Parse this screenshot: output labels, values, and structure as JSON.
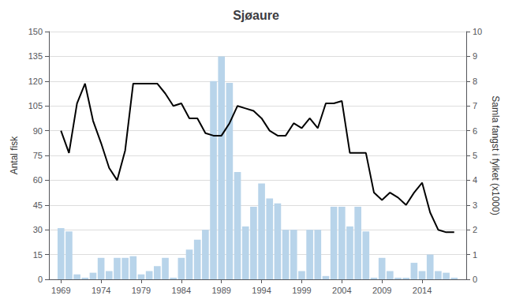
{
  "chart_data": {
    "type": "bar",
    "title": "Sjøaure",
    "ylabel": "Antal fisk",
    "y2label": "Samla fangst i fylket (x1000)",
    "x": [
      1969,
      1970,
      1971,
      1972,
      1973,
      1974,
      1975,
      1976,
      1977,
      1978,
      1979,
      1980,
      1981,
      1982,
      1983,
      1984,
      1985,
      1986,
      1987,
      1988,
      1989,
      1990,
      1991,
      1992,
      1993,
      1994,
      1995,
      1996,
      1997,
      1998,
      1999,
      2000,
      2001,
      2002,
      2003,
      2004,
      2005,
      2006,
      2007,
      2008,
      2009,
      2010,
      2011,
      2012,
      2013,
      2014,
      2015,
      2016,
      2017,
      2018
    ],
    "xlim": [
      1967.5,
      2019.5
    ],
    "xticks": [
      1969,
      1974,
      1979,
      1984,
      1989,
      1994,
      1999,
      2004,
      2009,
      2014
    ],
    "ylim": [
      0,
      150
    ],
    "yticks": [
      0,
      15,
      30,
      45,
      60,
      75,
      90,
      105,
      120,
      135,
      150
    ],
    "y2lim": [
      0,
      10
    ],
    "y2ticks": [
      0,
      1,
      2,
      3,
      4,
      5,
      6,
      7,
      8,
      9,
      10
    ],
    "grid": true,
    "series": [
      {
        "type": "bar",
        "color": "#b8d4ea",
        "values": [
          31,
          29,
          3,
          1,
          4,
          13,
          5,
          13,
          13,
          14,
          3,
          5,
          8,
          13,
          1,
          13,
          18,
          24,
          30,
          120,
          135,
          119,
          65,
          32,
          44,
          58,
          49,
          46,
          30,
          30,
          5,
          30,
          30,
          2,
          44,
          44,
          32,
          44,
          29,
          1,
          13,
          5,
          1,
          1,
          10,
          5,
          15,
          5,
          4,
          1
        ]
      },
      {
        "type": "line",
        "axis": "y2",
        "color": "#000000",
        "values": [
          6.0,
          5.1,
          7.1,
          7.9,
          6.4,
          5.5,
          4.5,
          4.0,
          5.2,
          7.9,
          7.9,
          7.9,
          7.9,
          7.5,
          7.0,
          7.1,
          6.5,
          6.5,
          5.9,
          5.8,
          5.8,
          6.3,
          7.0,
          6.9,
          6.8,
          6.5,
          6.0,
          5.8,
          5.8,
          6.3,
          6.1,
          6.5,
          6.1,
          7.1,
          7.1,
          7.2,
          5.1,
          5.1,
          5.1,
          3.5,
          3.2,
          3.5,
          3.3,
          3.0,
          3.5,
          3.9,
          2.7,
          2.0,
          1.9,
          1.9
        ]
      }
    ]
  }
}
